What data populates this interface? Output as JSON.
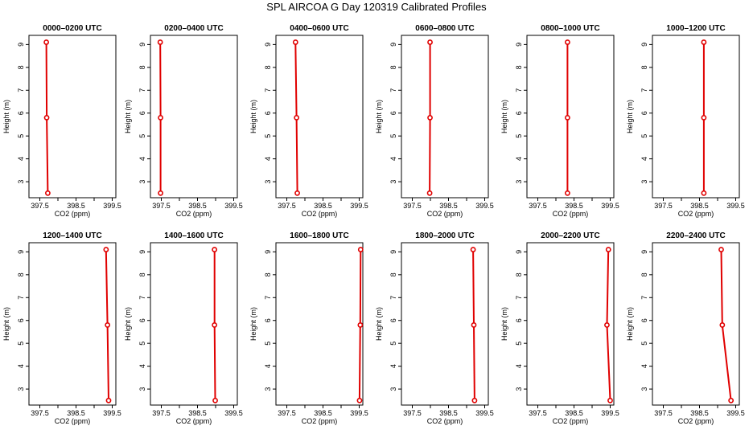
{
  "figure": {
    "title": "SPL AIRCOA G  Day 120319  Calibrated Profiles"
  },
  "chart_data": [
    {
      "type": "line",
      "title": "0000–0200 UTC",
      "xlabel": "CO2 (ppm)",
      "ylabel": "Height (m)",
      "xlim": [
        397.2,
        399.6
      ],
      "ylim": [
        2.3,
        9.4
      ],
      "xticks": [
        397.5,
        398.0,
        398.5,
        399.0,
        399.5
      ],
      "xtick_labels": [
        "397.5",
        "",
        "398.5",
        "",
        "399.5"
      ],
      "yticks": [
        3,
        4,
        5,
        6,
        7,
        8,
        9
      ],
      "series": [
        {
          "x": [
            397.68,
            397.69,
            397.72
          ],
          "y": [
            9.1,
            5.8,
            2.5
          ]
        }
      ],
      "color": "#e00000"
    },
    {
      "type": "line",
      "title": "0200–0400 UTC",
      "xlabel": "CO2 (ppm)",
      "ylabel": "Height (m)",
      "xlim": [
        397.2,
        399.6
      ],
      "ylim": [
        2.3,
        9.4
      ],
      "xticks": [
        397.5,
        398.0,
        398.5,
        399.0,
        399.5
      ],
      "xtick_labels": [
        "397.5",
        "",
        "398.5",
        "",
        "399.5"
      ],
      "yticks": [
        3,
        4,
        5,
        6,
        7,
        8,
        9
      ],
      "series": [
        {
          "x": [
            397.47,
            397.48,
            397.48
          ],
          "y": [
            9.1,
            5.8,
            2.5
          ]
        }
      ],
      "color": "#e00000"
    },
    {
      "type": "line",
      "title": "0400–0600 UTC",
      "xlabel": "CO2 (ppm)",
      "ylabel": "Height (m)",
      "xlim": [
        397.2,
        399.6
      ],
      "ylim": [
        2.3,
        9.4
      ],
      "xticks": [
        397.5,
        398.0,
        398.5,
        399.0,
        399.5
      ],
      "xtick_labels": [
        "397.5",
        "",
        "398.5",
        "",
        "399.5"
      ],
      "yticks": [
        3,
        4,
        5,
        6,
        7,
        8,
        9
      ],
      "series": [
        {
          "x": [
            397.74,
            397.77,
            397.79
          ],
          "y": [
            9.1,
            5.8,
            2.5
          ]
        }
      ],
      "color": "#e00000"
    },
    {
      "type": "line",
      "title": "0600–0800 UTC",
      "xlabel": "CO2 (ppm)",
      "ylabel": "Height (m)",
      "xlim": [
        397.2,
        399.6
      ],
      "ylim": [
        2.3,
        9.4
      ],
      "xticks": [
        397.5,
        398.0,
        398.5,
        399.0,
        399.5
      ],
      "xtick_labels": [
        "397.5",
        "",
        "398.5",
        "",
        "399.5"
      ],
      "yticks": [
        3,
        4,
        5,
        6,
        7,
        8,
        9
      ],
      "series": [
        {
          "x": [
            397.99,
            397.99,
            397.98
          ],
          "y": [
            9.1,
            5.8,
            2.5
          ]
        }
      ],
      "color": "#e00000"
    },
    {
      "type": "line",
      "title": "0800–1000 UTC",
      "xlabel": "CO2 (ppm)",
      "ylabel": "Height (m)",
      "xlim": [
        397.2,
        399.6
      ],
      "ylim": [
        2.3,
        9.4
      ],
      "xticks": [
        397.5,
        398.0,
        398.5,
        399.0,
        399.5
      ],
      "xtick_labels": [
        "397.5",
        "",
        "398.5",
        "",
        "399.5"
      ],
      "yticks": [
        3,
        4,
        5,
        6,
        7,
        8,
        9
      ],
      "series": [
        {
          "x": [
            398.32,
            398.32,
            398.32
          ],
          "y": [
            9.1,
            5.8,
            2.5
          ]
        }
      ],
      "color": "#e00000"
    },
    {
      "type": "line",
      "title": "1000–1200 UTC",
      "xlabel": "CO2 (ppm)",
      "ylabel": "Height (m)",
      "xlim": [
        397.2,
        399.6
      ],
      "ylim": [
        2.3,
        9.4
      ],
      "xticks": [
        397.5,
        398.0,
        398.5,
        399.0,
        399.5
      ],
      "xtick_labels": [
        "397.5",
        "",
        "398.5",
        "",
        "399.5"
      ],
      "yticks": [
        3,
        4,
        5,
        6,
        7,
        8,
        9
      ],
      "series": [
        {
          "x": [
            398.62,
            398.62,
            398.62
          ],
          "y": [
            9.1,
            5.8,
            2.5
          ]
        }
      ],
      "color": "#e00000"
    },
    {
      "type": "line",
      "title": "1200–1400 UTC",
      "xlabel": "CO2 (ppm)",
      "ylabel": "Height (m)",
      "xlim": [
        397.2,
        399.6
      ],
      "ylim": [
        2.3,
        9.4
      ],
      "xticks": [
        397.5,
        398.0,
        398.5,
        399.0,
        399.5
      ],
      "xtick_labels": [
        "397.5",
        "",
        "398.5",
        "",
        "399.5"
      ],
      "yticks": [
        3,
        4,
        5,
        6,
        7,
        8,
        9
      ],
      "series": [
        {
          "x": [
            399.33,
            399.37,
            399.4
          ],
          "y": [
            9.1,
            5.8,
            2.5
          ]
        }
      ],
      "color": "#e00000"
    },
    {
      "type": "line",
      "title": "1400–1600 UTC",
      "xlabel": "CO2 (ppm)",
      "ylabel": "Height (m)",
      "xlim": [
        397.2,
        399.6
      ],
      "ylim": [
        2.3,
        9.4
      ],
      "xticks": [
        397.5,
        398.0,
        398.5,
        399.0,
        399.5
      ],
      "xtick_labels": [
        "397.5",
        "",
        "398.5",
        "",
        "399.5"
      ],
      "yticks": [
        3,
        4,
        5,
        6,
        7,
        8,
        9
      ],
      "series": [
        {
          "x": [
            398.97,
            398.97,
            398.99
          ],
          "y": [
            9.1,
            5.8,
            2.5
          ]
        }
      ],
      "color": "#e00000"
    },
    {
      "type": "line",
      "title": "1600–1800 UTC",
      "xlabel": "CO2 (ppm)",
      "ylabel": "Height (m)",
      "xlim": [
        397.2,
        399.6
      ],
      "ylim": [
        2.3,
        9.4
      ],
      "xticks": [
        397.5,
        398.0,
        398.5,
        399.0,
        399.5
      ],
      "xtick_labels": [
        "397.5",
        "",
        "398.5",
        "",
        "399.5"
      ],
      "yticks": [
        3,
        4,
        5,
        6,
        7,
        8,
        9
      ],
      "series": [
        {
          "x": [
            399.54,
            399.53,
            399.51
          ],
          "y": [
            9.1,
            5.8,
            2.5
          ]
        }
      ],
      "color": "#e00000"
    },
    {
      "type": "line",
      "title": "1800–2000 UTC",
      "xlabel": "CO2 (ppm)",
      "ylabel": "Height (m)",
      "xlim": [
        397.2,
        399.6
      ],
      "ylim": [
        2.3,
        9.4
      ],
      "xticks": [
        397.5,
        398.0,
        398.5,
        399.0,
        399.5
      ],
      "xtick_labels": [
        "397.5",
        "",
        "398.5",
        "",
        "399.5"
      ],
      "yticks": [
        3,
        4,
        5,
        6,
        7,
        8,
        9
      ],
      "series": [
        {
          "x": [
            399.18,
            399.2,
            399.22
          ],
          "y": [
            9.1,
            5.8,
            2.5
          ]
        }
      ],
      "color": "#e00000"
    },
    {
      "type": "line",
      "title": "2000–2200 UTC",
      "xlabel": "CO2 (ppm)",
      "ylabel": "Height (m)",
      "xlim": [
        397.2,
        399.6
      ],
      "ylim": [
        2.3,
        9.4
      ],
      "xticks": [
        397.5,
        398.0,
        398.5,
        399.0,
        399.5
      ],
      "xtick_labels": [
        "397.5",
        "",
        "398.5",
        "",
        "399.5"
      ],
      "yticks": [
        3,
        4,
        5,
        6,
        7,
        8,
        9
      ],
      "series": [
        {
          "x": [
            399.45,
            399.41,
            399.5
          ],
          "y": [
            9.1,
            5.8,
            2.5
          ]
        }
      ],
      "color": "#e00000"
    },
    {
      "type": "line",
      "title": "2200–2400 UTC",
      "xlabel": "CO2 (ppm)",
      "ylabel": "Height (m)",
      "xlim": [
        397.2,
        399.6
      ],
      "ylim": [
        2.3,
        9.4
      ],
      "xticks": [
        397.5,
        398.0,
        398.5,
        399.0,
        399.5
      ],
      "xtick_labels": [
        "397.5",
        "",
        "398.5",
        "",
        "399.5"
      ],
      "yticks": [
        3,
        4,
        5,
        6,
        7,
        8,
        9
      ],
      "series": [
        {
          "x": [
            399.1,
            399.13,
            399.37
          ],
          "y": [
            9.1,
            5.8,
            2.5
          ]
        }
      ],
      "color": "#e00000"
    }
  ]
}
